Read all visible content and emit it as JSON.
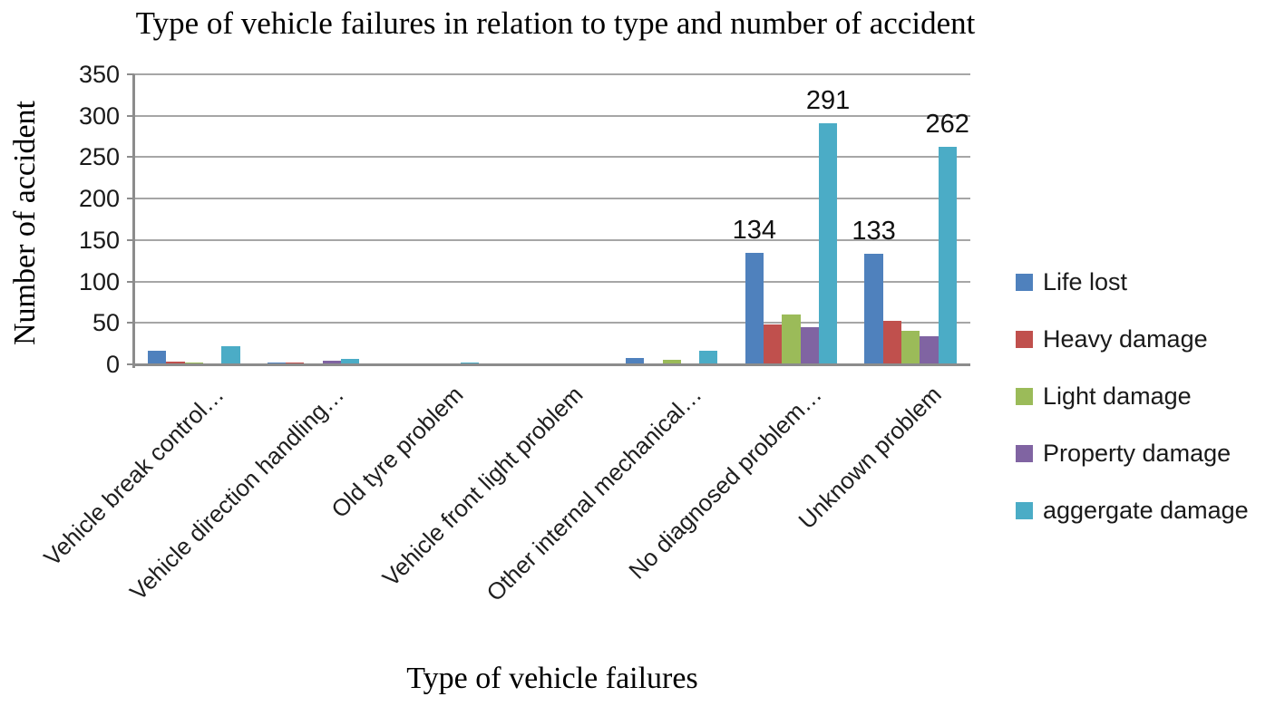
{
  "title": "Type of vehicle failures in relation to type and number of accident",
  "y_axis_title": "Number of accident",
  "x_axis_title": "Type of vehicle failures",
  "colors": {
    "life_lost": "#4F81BD",
    "heavy_damage": "#C0504D",
    "light_damage": "#9BBB59",
    "property_damage": "#8064A2",
    "aggergate_damage": "#4BACC6",
    "gridline": "#A6A6A6",
    "axis": "#8C8C8C"
  },
  "legend": [
    {
      "label": "Life lost",
      "color": "#4F81BD"
    },
    {
      "label": "Heavy damage",
      "color": "#C0504D"
    },
    {
      "label": "Light damage",
      "color": "#9BBB59"
    },
    {
      "label": "Property damage",
      "color": "#8064A2"
    },
    {
      "label": "aggergate damage",
      "color": "#4BACC6"
    }
  ],
  "chart_data": {
    "type": "bar",
    "title": "Type of vehicle failures in relation to type and number of accident",
    "xlabel": "Type of vehicle failures",
    "ylabel": "Number of accident",
    "ylim": [
      0,
      350
    ],
    "ytick_step": 50,
    "ytick_labels": [
      "0",
      "50",
      "100",
      "150",
      "200",
      "250",
      "300",
      "350"
    ],
    "grid": "horizontal",
    "legend_position": "right",
    "categories": [
      "Vehicle break control…",
      "Vehicle direction handling…",
      "Old tyre problem",
      "Vehicle front light problem",
      "Other internal mechanical…",
      "No diagnosed problem…",
      "Unknown problem"
    ],
    "series": [
      {
        "name": "Life lost",
        "color": "#4F81BD",
        "values": [
          16,
          2,
          0,
          0,
          8,
          134,
          133
        ]
      },
      {
        "name": "Heavy damage",
        "color": "#C0504D",
        "values": [
          3,
          2,
          0,
          0,
          1,
          48,
          52
        ]
      },
      {
        "name": "Light damage",
        "color": "#9BBB59",
        "values": [
          2,
          1,
          0,
          0,
          6,
          60,
          41
        ]
      },
      {
        "name": "Property damage",
        "color": "#8064A2",
        "values": [
          1,
          4,
          0,
          0,
          1,
          45,
          34
        ]
      },
      {
        "name": "aggergate damage",
        "color": "#4BACC6",
        "values": [
          22,
          7,
          2,
          1,
          16,
          291,
          262
        ]
      }
    ],
    "data_labels": [
      {
        "category_index": 5,
        "series_index": 0,
        "text": "134"
      },
      {
        "category_index": 5,
        "series_index": 4,
        "text": "291"
      },
      {
        "category_index": 6,
        "series_index": 0,
        "text": "133"
      },
      {
        "category_index": 6,
        "series_index": 4,
        "text": "262"
      }
    ]
  }
}
